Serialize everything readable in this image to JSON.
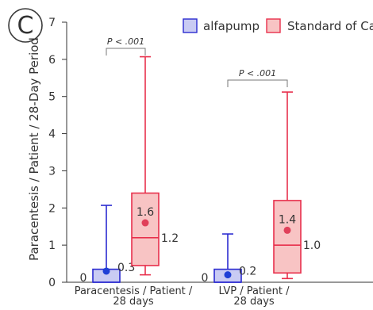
{
  "panel_label": "C",
  "chart_data": {
    "type": "box",
    "ylabel": "Paracentesis / Patient / 28-Day Period",
    "ylim": [
      0,
      7
    ],
    "yticks": [
      0,
      1,
      2,
      3,
      4,
      5,
      6,
      7
    ],
    "categories": [
      "Paracentesis / Patient / 28 days",
      "LVP / Patient / 28 days"
    ],
    "category_lines": [
      [
        "Paracentesis / Patient /",
        "28 days"
      ],
      [
        "LVP / Patient /",
        "28 days"
      ]
    ],
    "legend_position": "top-right",
    "series": [
      {
        "name": "alfapump",
        "stroke": "#2b2bd0",
        "fill": "#c9cbf3",
        "marker": "#1f3fd6",
        "boxes": [
          {
            "whisker_low": 0,
            "q1": 0,
            "median": 0,
            "q3": 0.35,
            "whisker_high": 2.07,
            "mean": 0.3,
            "median_label": "0",
            "mean_label": "0.3"
          },
          {
            "whisker_low": 0,
            "q1": 0,
            "median": 0,
            "q3": 0.35,
            "whisker_high": 1.3,
            "mean": 0.2,
            "median_label": "0",
            "mean_label": "0.2"
          }
        ]
      },
      {
        "name": "Standard of Care",
        "stroke": "#e8304c",
        "fill": "#f8c4c4",
        "marker": "#e0405a",
        "boxes": [
          {
            "whisker_low": 0.2,
            "q1": 0.45,
            "median": 1.2,
            "q3": 2.4,
            "whisker_high": 6.07,
            "mean": 1.6,
            "median_label": "1.2",
            "mean_label": "1.6"
          },
          {
            "whisker_low": 0.1,
            "q1": 0.25,
            "median": 1.0,
            "q3": 2.2,
            "whisker_high": 5.12,
            "mean": 1.4,
            "median_label": "1.0",
            "mean_label": "1.4"
          }
        ]
      }
    ],
    "annotations": [
      {
        "text": "P < .001",
        "category_index": 0
      },
      {
        "text": "P < .001",
        "category_index": 1
      }
    ]
  }
}
